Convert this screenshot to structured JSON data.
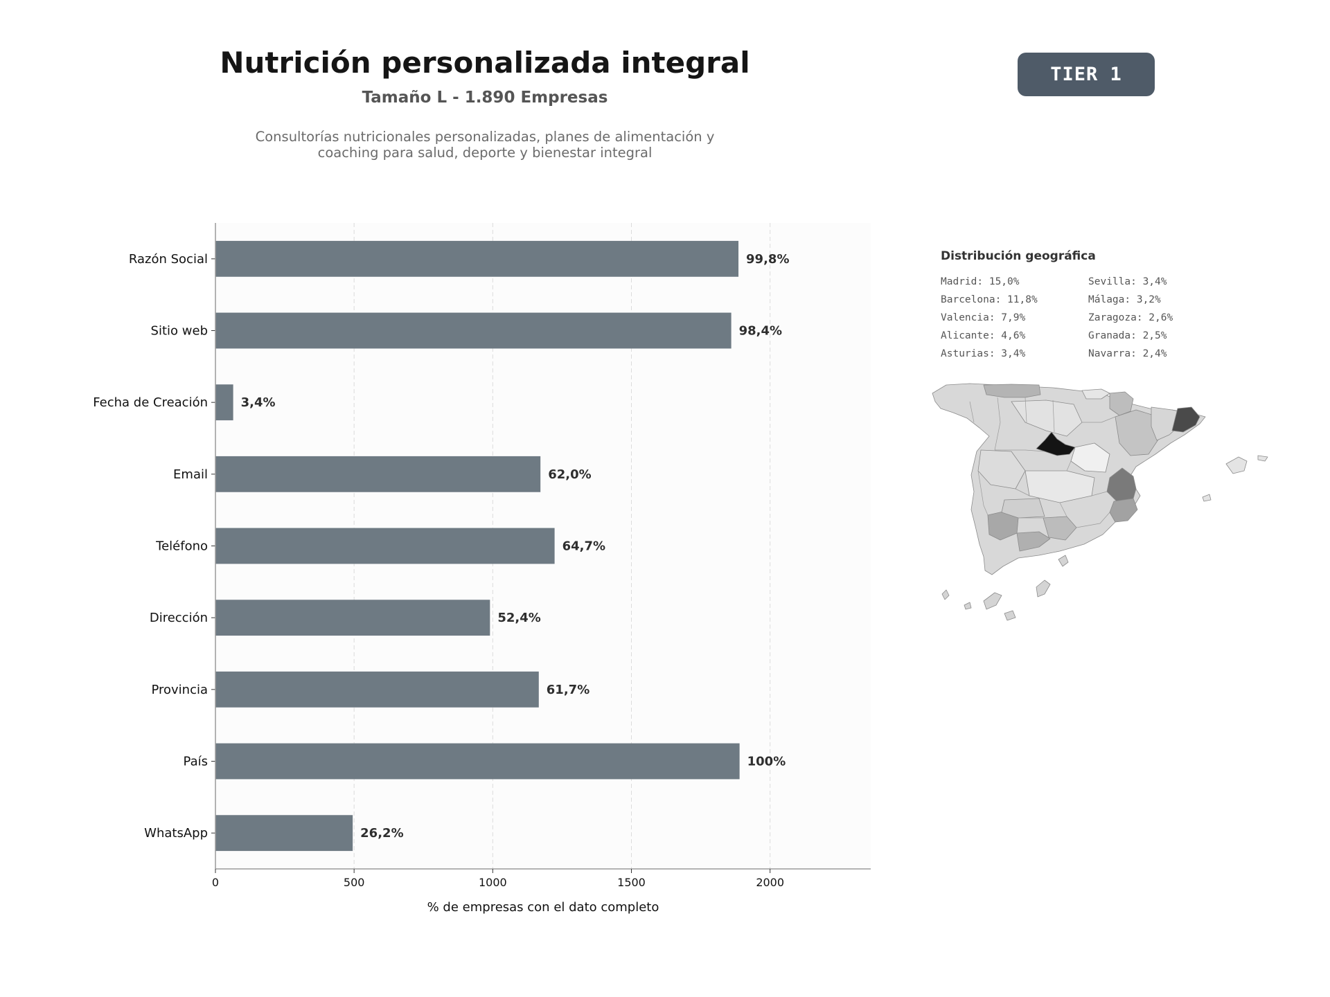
{
  "header": {
    "title": "Nutrición personalizada integral",
    "subtitle": "Tamaño L - 1.890 Empresas",
    "description_line1": "Consultorías nutricionales personalizadas, planes de alimentación y",
    "description_line2": "coaching para salud, deporte y bienestar integral",
    "badge": "TIER 1"
  },
  "chart_data": {
    "type": "bar",
    "orientation": "horizontal",
    "total": 1890,
    "categories": [
      "Razón Social",
      "Sitio web",
      "Fecha de Creación",
      "Email",
      "Teléfono",
      "Dirección",
      "Provincia",
      "País",
      "WhatsApp"
    ],
    "values": [
      1886,
      1860,
      64,
      1172,
      1223,
      990,
      1166,
      1890,
      495
    ],
    "labels": [
      "99,8%",
      "98,4%",
      "3,4%",
      "62,0%",
      "64,7%",
      "52,4%",
      "61,7%",
      "100%",
      "26,2%"
    ],
    "xlabel": "% de empresas con el dato completo",
    "xticks": [
      0,
      500,
      1000,
      1500,
      2000
    ],
    "xlim": [
      0,
      2363
    ],
    "grid": "vertical dashed",
    "bar_color": "#6e7a83"
  },
  "geo": {
    "title": "Distribución geográfica",
    "entries": [
      {
        "name": "Madrid",
        "pct": "15,0%"
      },
      {
        "name": "Barcelona",
        "pct": "11,8%"
      },
      {
        "name": "Valencia",
        "pct": "7,9%"
      },
      {
        "name": "Alicante",
        "pct": "4,6%"
      },
      {
        "name": "Asturias",
        "pct": "3,4%"
      },
      {
        "name": "Sevilla",
        "pct": "3,4%"
      },
      {
        "name": "Málaga",
        "pct": "3,2%"
      },
      {
        "name": "Zaragoza",
        "pct": "2,6%"
      },
      {
        "name": "Granada",
        "pct": "2,5%"
      },
      {
        "name": "Navarra",
        "pct": "2,4%"
      }
    ],
    "col1": [
      "Madrid: 15,0%",
      "Barcelona: 11,8%",
      "Valencia: 7,9%",
      "Alicante: 4,6%",
      "Asturias: 3,4%"
    ],
    "col2": [
      "Sevilla: 3,4%",
      "Málaga: 3,2%",
      "Zaragoza: 2,6%",
      "Granada: 2,5%",
      "Navarra: 2,4%"
    ]
  }
}
